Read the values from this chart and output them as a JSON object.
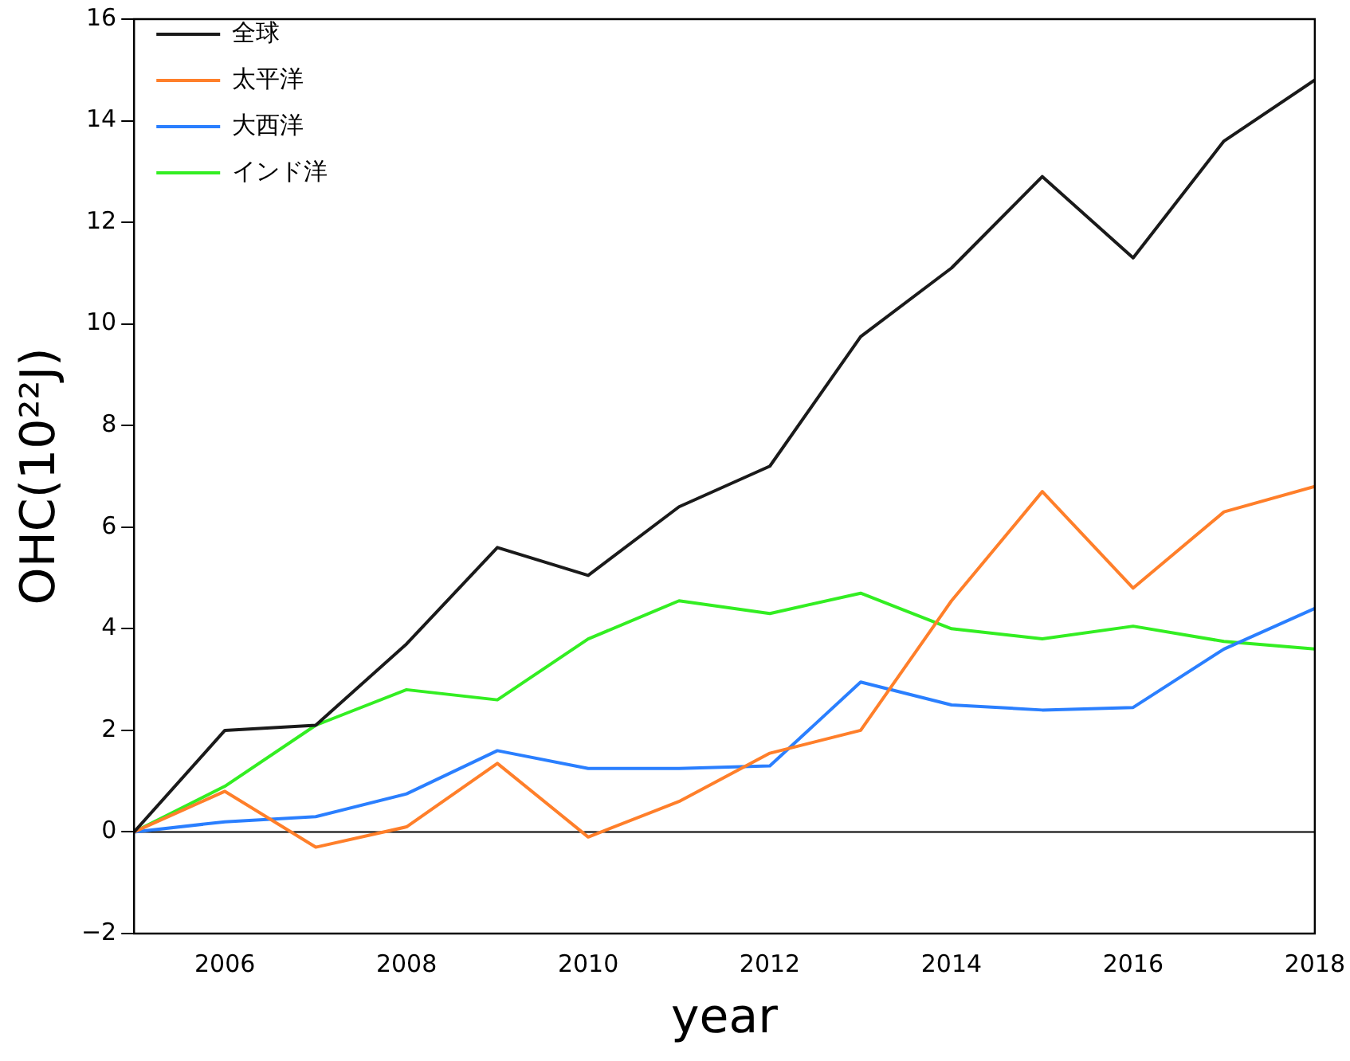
{
  "chart_data": {
    "type": "line",
    "xlabel": "year",
    "ylabel": "OHC(10²²J)",
    "x": [
      2005,
      2006,
      2007,
      2008,
      2009,
      2010,
      2011,
      2012,
      2013,
      2014,
      2015,
      2016,
      2017,
      2018
    ],
    "xlim": [
      2005,
      2018
    ],
    "xticks": [
      2006,
      2008,
      2010,
      2012,
      2014,
      2016,
      2018
    ],
    "ylim": [
      -2,
      16
    ],
    "yticks": [
      {
        "value": -2,
        "label": "−2"
      },
      0,
      2,
      4,
      6,
      8,
      10,
      12,
      14,
      16
    ],
    "grid": false,
    "legend": "top left",
    "marker": "none",
    "line_style": "solid",
    "ref_lines": [
      {
        "axis": "y",
        "value": 0,
        "color": "#000000"
      }
    ],
    "series": [
      {
        "name": "全球",
        "color": "#1a1a1a",
        "values": [
          0,
          2.0,
          2.1,
          3.7,
          5.6,
          5.05,
          6.4,
          7.2,
          9.75,
          11.1,
          12.9,
          11.3,
          13.6,
          14.8
        ]
      },
      {
        "name": "太平洋",
        "color": "#ff7f2a",
        "values": [
          0,
          0.8,
          -0.3,
          0.1,
          1.35,
          -0.1,
          0.6,
          1.55,
          2.0,
          4.55,
          6.7,
          4.8,
          6.3,
          6.8
        ]
      },
      {
        "name": "大西洋",
        "color": "#2a7fff",
        "values": [
          0,
          0.2,
          0.3,
          0.75,
          1.6,
          1.25,
          1.25,
          1.3,
          2.95,
          2.5,
          2.4,
          2.45,
          3.6,
          4.4
        ]
      },
      {
        "name": "インド洋",
        "color": "#33ee22",
        "values": [
          0,
          0.9,
          2.1,
          2.8,
          2.6,
          3.8,
          4.55,
          4.3,
          4.7,
          4.0,
          3.8,
          4.05,
          3.75,
          3.6
        ]
      }
    ]
  }
}
